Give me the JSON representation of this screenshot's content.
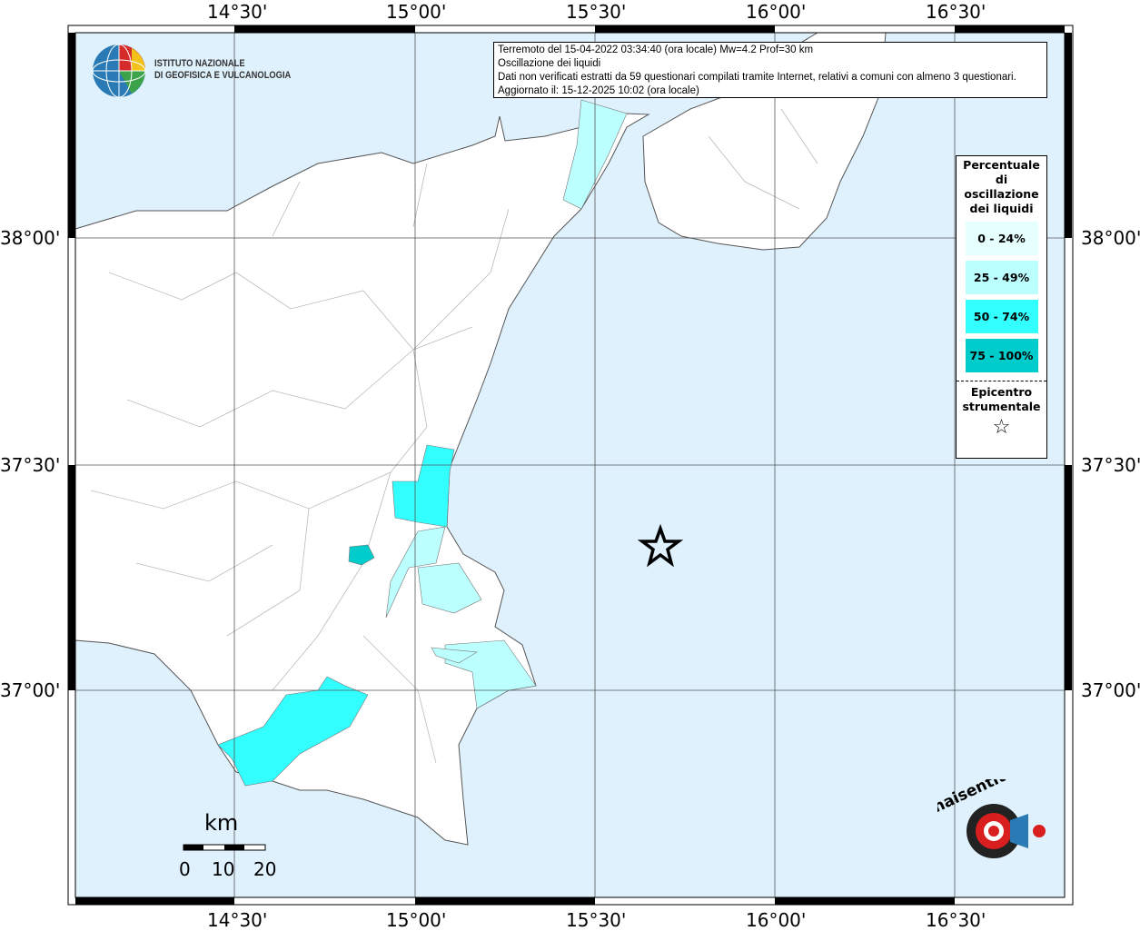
{
  "map": {
    "title_lines": [
      "Terremoto del 15-04-2022 03:34:40 (ora locale) Mw=4.2 Prof=30 km",
      "Oscillazione dei liquidi",
      "Dati non verificati estratti da 59 questionari compilati tramite Internet, relativi a comuni con almeno 3 questionari.",
      "Aggiornato il: 15-12-2025 10:02 (ora locale)"
    ],
    "lon_ticks": [
      "14°30'",
      "15°00'",
      "15°30'",
      "16°00'",
      "16°30'"
    ],
    "lat_ticks": [
      "38°00'",
      "37°30'",
      "37°00'"
    ],
    "colors": {
      "sea": "#dff1fd",
      "land": "#ffffff",
      "c0": "#e6ffff",
      "c25": "#bbffff",
      "c50": "#33ffff",
      "c75": "#00cccc"
    }
  },
  "legend": {
    "title": "Percentuale di oscillazione dei liquidi",
    "classes": [
      "0 - 24%",
      "25 - 49%",
      "50 - 74%",
      "75 - 100%"
    ],
    "epicenter_label": "Epicentro strumentale",
    "epicenter_icon": "star-icon"
  },
  "scale": {
    "unit": "km",
    "labels": [
      "0",
      "10",
      "20"
    ]
  },
  "logos": {
    "ingv": "ISTITUTO NAZIONALE DI GEOFISICA E VULCANOLOGIA",
    "ingv_line1": "ISTITUTO NAZIONALE",
    "ingv_line2": "DI GEOFISICA E VULCANOLOGIA",
    "haisentito": "haisentitoilterremoto.it www."
  }
}
